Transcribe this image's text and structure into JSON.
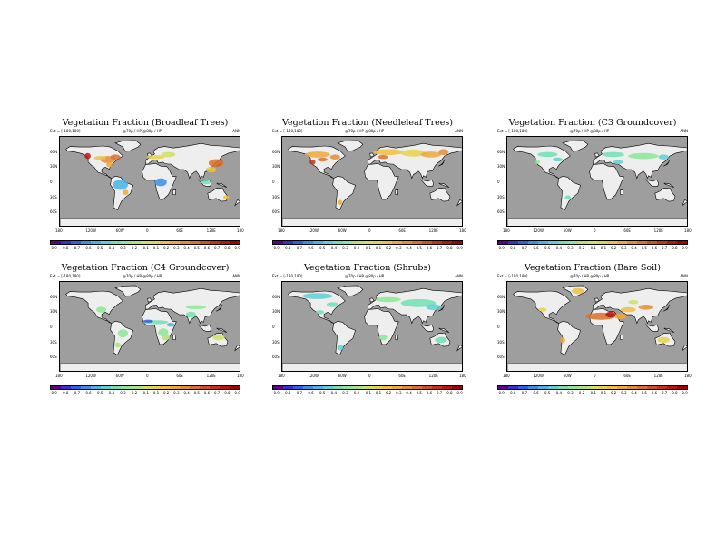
{
  "panels": [
    {
      "title": "Vegetation Fraction (Broadleaf Trees)",
      "meta_left": "Ext = [-180,180]",
      "meta_mid": "@70p / HP  @80p / HP",
      "meta_right": "ANN",
      "theme": "broadleaf"
    },
    {
      "title": "Vegetation Fraction (Needleleaf Trees)",
      "meta_left": "Ext = [-180,180]",
      "meta_mid": "@70p / HP  @80p / HP",
      "meta_right": "ANN",
      "theme": "needleleaf"
    },
    {
      "title": "Vegetation Fraction (C3 Groundcover)",
      "meta_left": "Ext = [-180,180]",
      "meta_mid": "@70p / HP  @80p / HP",
      "meta_right": "ANN",
      "theme": "c3"
    },
    {
      "title": "Vegetation Fraction (C4 Groundcover)",
      "meta_left": "Ext = [-180,180]",
      "meta_mid": "@70p / HP  @80p / HP",
      "meta_right": "ANN",
      "theme": "c4"
    },
    {
      "title": "Vegetation Fraction (Shrubs)",
      "meta_left": "Ext = [-180,180]",
      "meta_mid": "@70p / HP  @80p / HP",
      "meta_right": "ANN",
      "theme": "shrubs"
    },
    {
      "title": "Vegetation Fraction (Bare Soil)",
      "meta_left": "Ext = [-180,180]",
      "meta_mid": "@70p / HP  @80p / HP",
      "meta_right": "ANN",
      "theme": "bare"
    }
  ],
  "lat_labels": [
    "60N",
    "30N",
    "0",
    "30S",
    "60S"
  ],
  "lon_labels": [
    "180",
    "120W",
    "60W",
    "0",
    "60E",
    "120E",
    "180"
  ],
  "colorbar_ticks": [
    "-0.9",
    "-0.8",
    "-0.7",
    "-0.6",
    "-0.5",
    "-0.4",
    "-0.3",
    "-0.2",
    "-0.1",
    "0.1",
    "0.2",
    "0.3",
    "0.4",
    "0.5",
    "0.6",
    "0.7",
    "0.8",
    "0.9"
  ],
  "colorbar_colors": [
    "#5a0090",
    "#3a2fc8",
    "#2f60e0",
    "#3a8ee8",
    "#46b4e6",
    "#5ed0d4",
    "#6ee0b4",
    "#8ce696",
    "#b0e27a",
    "#d0e060",
    "#e6d24a",
    "#eec040",
    "#eca838",
    "#e48c30",
    "#dc7028",
    "#d05020",
    "#c43018",
    "#b81410",
    "#a00008"
  ],
  "map_colors": {
    "ocean": "#9e9e9e",
    "land": "#eeeeee",
    "coast": "#000000"
  }
}
